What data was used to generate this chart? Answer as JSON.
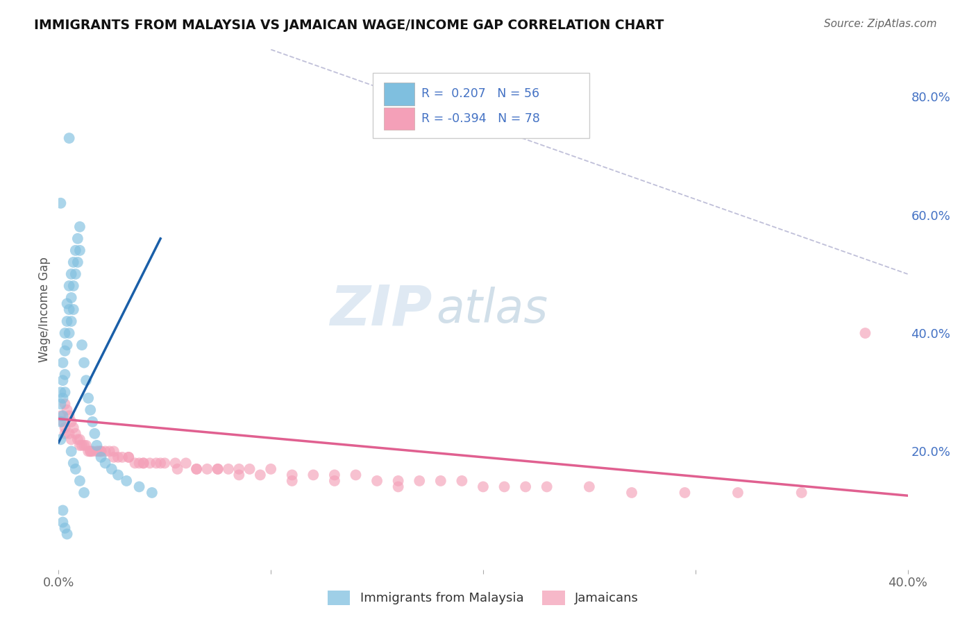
{
  "title": "IMMIGRANTS FROM MALAYSIA VS JAMAICAN WAGE/INCOME GAP CORRELATION CHART",
  "source_text": "Source: ZipAtlas.com",
  "ylabel": "Wage/Income Gap",
  "xlim": [
    0.0,
    0.4
  ],
  "ylim": [
    0.0,
    0.88
  ],
  "x_ticks": [
    0.0,
    0.1,
    0.2,
    0.3,
    0.4
  ],
  "x_tick_labels": [
    "0.0%",
    "",
    "",
    "",
    "40.0%"
  ],
  "y_ticks_right": [
    0.2,
    0.4,
    0.6,
    0.8
  ],
  "y_tick_labels_right": [
    "20.0%",
    "40.0%",
    "60.0%",
    "80.0%"
  ],
  "blue_color": "#7fbfdf",
  "pink_color": "#f4a0b8",
  "blue_line_color": "#1a5fa8",
  "pink_line_color": "#e06090",
  "watermark_zip": "ZIP",
  "watermark_atlas": "atlas",
  "blue_line_x": [
    0.0,
    0.048
  ],
  "blue_line_y": [
    0.215,
    0.56
  ],
  "pink_line_x": [
    0.0,
    0.4
  ],
  "pink_line_y": [
    0.255,
    0.125
  ],
  "diag_line_x": [
    0.1,
    0.4
  ],
  "diag_line_y": [
    0.88,
    0.5
  ],
  "blue_scatter_x": [
    0.001,
    0.001,
    0.001,
    0.001,
    0.002,
    0.002,
    0.002,
    0.002,
    0.003,
    0.003,
    0.003,
    0.003,
    0.004,
    0.004,
    0.004,
    0.005,
    0.005,
    0.005,
    0.006,
    0.006,
    0.006,
    0.007,
    0.007,
    0.007,
    0.008,
    0.008,
    0.009,
    0.009,
    0.01,
    0.01,
    0.011,
    0.012,
    0.013,
    0.014,
    0.015,
    0.016,
    0.017,
    0.018,
    0.02,
    0.022,
    0.025,
    0.028,
    0.032,
    0.038,
    0.044,
    0.001,
    0.002,
    0.002,
    0.003,
    0.004,
    0.005,
    0.006,
    0.007,
    0.008,
    0.01,
    0.012
  ],
  "blue_scatter_y": [
    0.3,
    0.28,
    0.25,
    0.22,
    0.35,
    0.32,
    0.29,
    0.26,
    0.4,
    0.37,
    0.33,
    0.3,
    0.45,
    0.42,
    0.38,
    0.48,
    0.44,
    0.4,
    0.5,
    0.46,
    0.42,
    0.52,
    0.48,
    0.44,
    0.54,
    0.5,
    0.56,
    0.52,
    0.58,
    0.54,
    0.38,
    0.35,
    0.32,
    0.29,
    0.27,
    0.25,
    0.23,
    0.21,
    0.19,
    0.18,
    0.17,
    0.16,
    0.15,
    0.14,
    0.13,
    0.62,
    0.1,
    0.08,
    0.07,
    0.06,
    0.73,
    0.2,
    0.18,
    0.17,
    0.15,
    0.13
  ],
  "pink_scatter_x": [
    0.001,
    0.002,
    0.003,
    0.003,
    0.004,
    0.005,
    0.005,
    0.006,
    0.007,
    0.008,
    0.009,
    0.01,
    0.011,
    0.012,
    0.013,
    0.014,
    0.015,
    0.016,
    0.018,
    0.019,
    0.02,
    0.022,
    0.024,
    0.026,
    0.028,
    0.03,
    0.033,
    0.036,
    0.038,
    0.04,
    0.043,
    0.046,
    0.05,
    0.055,
    0.06,
    0.065,
    0.07,
    0.075,
    0.08,
    0.085,
    0.09,
    0.1,
    0.11,
    0.12,
    0.13,
    0.14,
    0.15,
    0.16,
    0.17,
    0.18,
    0.19,
    0.2,
    0.21,
    0.22,
    0.23,
    0.25,
    0.27,
    0.295,
    0.32,
    0.35,
    0.003,
    0.006,
    0.01,
    0.015,
    0.02,
    0.026,
    0.033,
    0.04,
    0.048,
    0.056,
    0.065,
    0.075,
    0.085,
    0.095,
    0.11,
    0.13,
    0.16,
    0.38
  ],
  "pink_scatter_y": [
    0.26,
    0.25,
    0.28,
    0.24,
    0.27,
    0.26,
    0.23,
    0.25,
    0.24,
    0.23,
    0.22,
    0.22,
    0.21,
    0.21,
    0.21,
    0.2,
    0.2,
    0.2,
    0.2,
    0.2,
    0.2,
    0.2,
    0.2,
    0.2,
    0.19,
    0.19,
    0.19,
    0.18,
    0.18,
    0.18,
    0.18,
    0.18,
    0.18,
    0.18,
    0.18,
    0.17,
    0.17,
    0.17,
    0.17,
    0.17,
    0.17,
    0.17,
    0.16,
    0.16,
    0.16,
    0.16,
    0.15,
    0.15,
    0.15,
    0.15,
    0.15,
    0.14,
    0.14,
    0.14,
    0.14,
    0.14,
    0.13,
    0.13,
    0.13,
    0.13,
    0.23,
    0.22,
    0.21,
    0.2,
    0.2,
    0.19,
    0.19,
    0.18,
    0.18,
    0.17,
    0.17,
    0.17,
    0.16,
    0.16,
    0.15,
    0.15,
    0.14,
    0.4
  ]
}
